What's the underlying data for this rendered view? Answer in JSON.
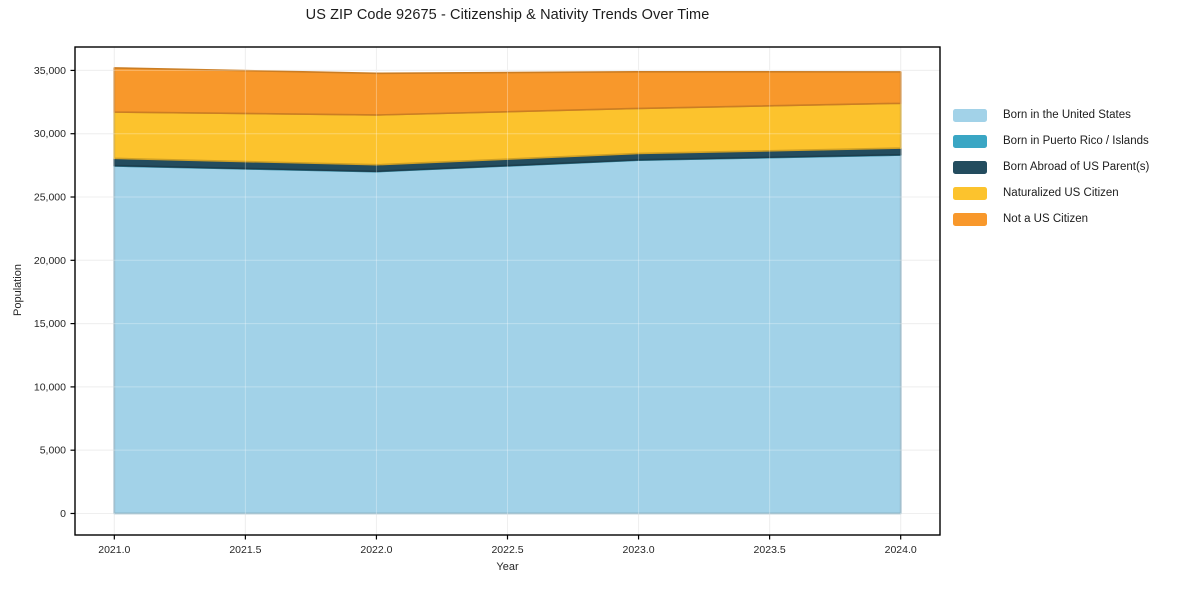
{
  "title": "US ZIP Code 92675 - Citizenship & Nativity Trends Over Time",
  "chart_data": {
    "type": "area",
    "stacked": true,
    "title": "US ZIP Code 92675 - Citizenship & Nativity Trends Over Time",
    "xlabel": "Year",
    "ylabel": "Population",
    "x": [
      2021,
      2022,
      2023,
      2024
    ],
    "series": [
      {
        "name": "Born in the United States",
        "color": "#a2d2e8",
        "values": [
          27450,
          27000,
          27910,
          28310
        ]
      },
      {
        "name": "Born in Puerto Rico / Islands",
        "color": "#3aa6c4",
        "values": [
          35,
          30,
          30,
          35
        ]
      },
      {
        "name": "Born Abroad of US Parent(s)",
        "color": "#234c5e",
        "values": [
          570,
          520,
          500,
          520
        ]
      },
      {
        "name": "Naturalized US Citizen",
        "color": "#fcc32d",
        "values": [
          3660,
          3930,
          3560,
          3540
        ]
      },
      {
        "name": "Not a US Citizen",
        "color": "#f8982b",
        "values": [
          3480,
          3290,
          2890,
          2480
        ]
      }
    ],
    "xlim": [
      2020.85,
      2024.15
    ],
    "ylim": [
      -1700,
      36850
    ],
    "xticks": {
      "values": [
        2021,
        2021.5,
        2022,
        2022.5,
        2023,
        2023.5,
        2024
      ],
      "labels": [
        "2021.0",
        "2021.5",
        "2022.0",
        "2022.5",
        "2023.0",
        "2023.5",
        "2024.0"
      ]
    },
    "yticks": {
      "values": [
        0,
        5000,
        10000,
        15000,
        20000,
        25000,
        30000,
        35000
      ],
      "labels": [
        "0",
        "5,000",
        "10,000",
        "15,000",
        "20,000",
        "25,000",
        "30,000",
        "35,000"
      ]
    },
    "grid": true,
    "legend_position": "right"
  },
  "style": {
    "spine_color": "#000000",
    "grid_color_under": "#e8e8e8",
    "grid_color_over": "rgba(255,255,255,0.3)",
    "background": "#ffffff"
  }
}
